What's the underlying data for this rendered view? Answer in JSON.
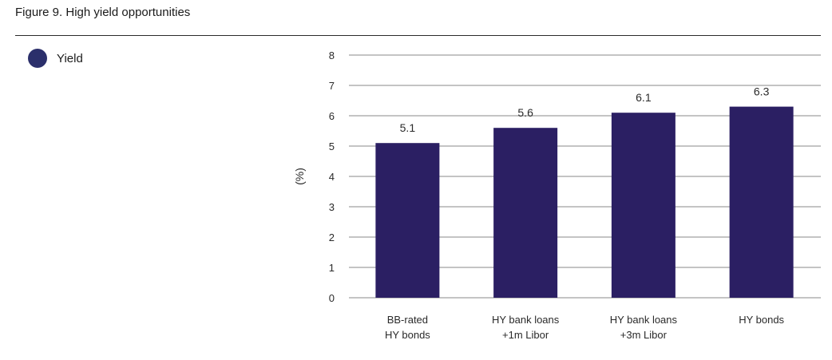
{
  "figure_title": "Figure 9. High yield opportunities",
  "colors": {
    "bar": "#2b1f63",
    "legend_swatch": "#2b2f6b",
    "grid": "#8a8a8a"
  },
  "chart_data": {
    "type": "bar",
    "title": "",
    "categories": [
      [
        "BB-rated",
        "HY bonds"
      ],
      [
        "HY bank loans",
        "+1m Libor"
      ],
      [
        "HY bank loans",
        "+3m Libor"
      ],
      [
        "HY bonds"
      ]
    ],
    "series": [
      {
        "name": "Yield",
        "values": [
          5.1,
          5.6,
          6.1,
          6.3
        ]
      }
    ],
    "data_labels": [
      "5.1",
      "5.6",
      "6.1",
      "6.3"
    ],
    "xlabel": "",
    "ylabel": "(%)",
    "ylim": [
      0,
      8
    ],
    "yticks": [
      0,
      1,
      2,
      3,
      4,
      5,
      6,
      7,
      8
    ],
    "grid": true,
    "legend": "top-left"
  }
}
